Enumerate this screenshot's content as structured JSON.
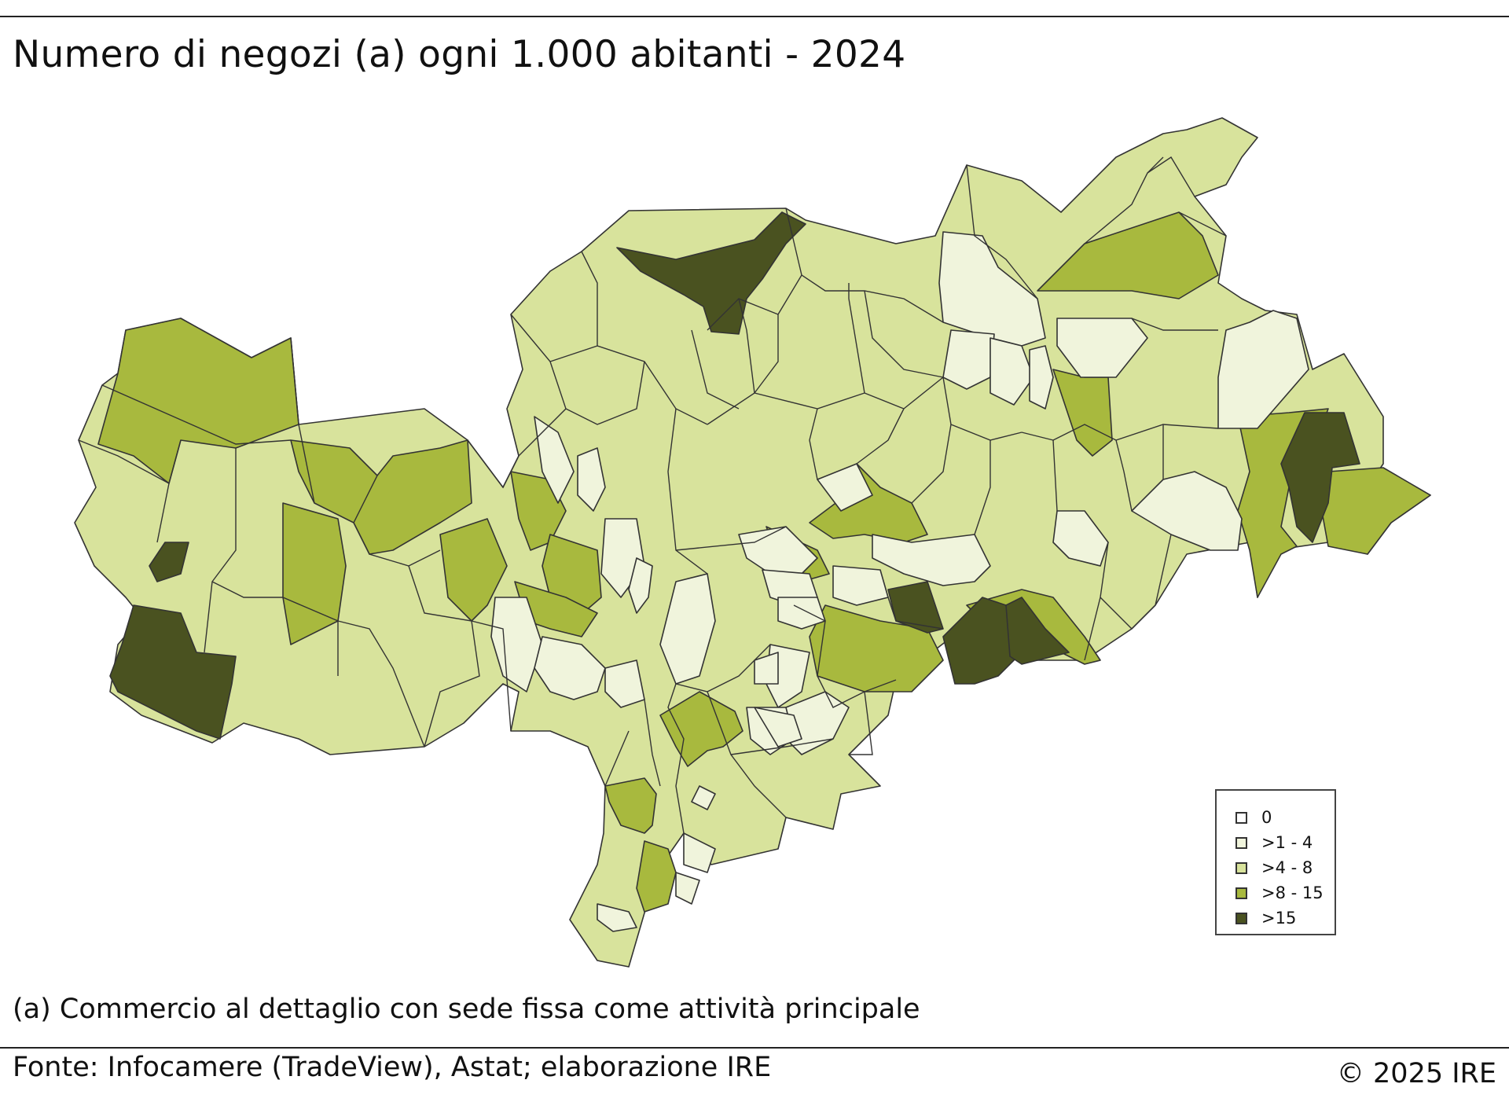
{
  "title": "Numero di negozi (a) ogni 1.000 abitanti - 2024",
  "note": "(a) Commercio al dettaglio con sede fissa come attività principale",
  "source": "Fonte: Infocamere (TradeView), Astat; elaborazione IRE",
  "copyright": "© 2025 IRE",
  "colors": {
    "class_0": "#ffffff",
    "class_1_4": "#f0f4dc",
    "class_4_8": "#d8e39c",
    "class_8_15": "#a8b93e",
    "class_15_plus": "#4a5220",
    "border": "#333333"
  },
  "legend": {
    "items": [
      {
        "label": "0",
        "color": "#ffffff"
      },
      {
        "label": ">1 - 4",
        "color": "#f0f4dc"
      },
      {
        "label": ">4 - 8",
        "color": "#d8e39c"
      },
      {
        "label": ">8 - 15",
        "color": "#a8b93e"
      },
      {
        "label": ">15",
        "color": "#4a5220"
      }
    ]
  }
}
